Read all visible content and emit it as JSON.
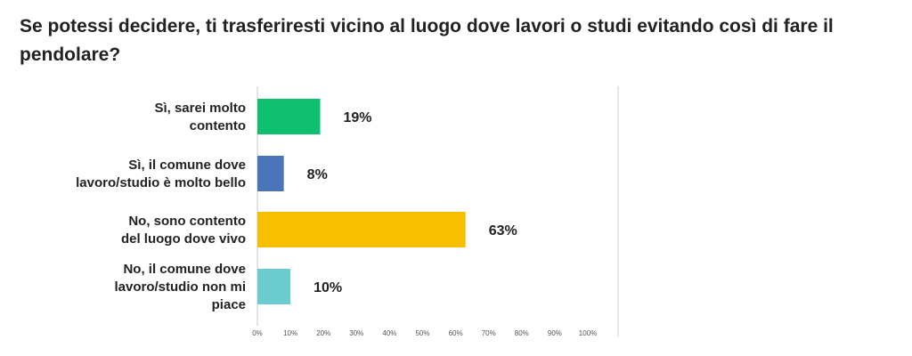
{
  "chart_data": {
    "type": "bar",
    "orientation": "horizontal",
    "title": "Se potessi decidere, ti trasferiresti vicino al luogo dove lavori o studi evitando così di fare il pendolare?",
    "categories": [
      "Sì, sarei molto contento",
      "Sì, il comune dove lavoro/studio è molto bello",
      "No, sono contento del luogo dove vivo",
      "No, il comune dove lavoro/studio non mi piace"
    ],
    "category_lines": [
      [
        "Sì, sarei molto",
        "contento"
      ],
      [
        "Sì, il comune dove",
        "lavoro/studio è molto bello"
      ],
      [
        "No, sono contento",
        "del luogo dove vivo"
      ],
      [
        "No, il comune dove",
        "lavoro/studio non mi",
        "piace"
      ]
    ],
    "values": [
      19,
      8,
      63,
      10
    ],
    "value_labels": [
      "19%",
      "8%",
      "63%",
      "10%"
    ],
    "colors": [
      "#0dbf6f",
      "#4a76b9",
      "#f8be00",
      "#6ccbcf"
    ],
    "xlim": [
      0,
      100
    ],
    "ticks": [
      0,
      10,
      20,
      30,
      40,
      50,
      60,
      70,
      80,
      90,
      100
    ],
    "tick_labels": [
      "0%",
      "10%",
      "20%",
      "30%",
      "40%",
      "50%",
      "60%",
      "70%",
      "80%",
      "90%",
      "100%"
    ],
    "grid": false
  }
}
